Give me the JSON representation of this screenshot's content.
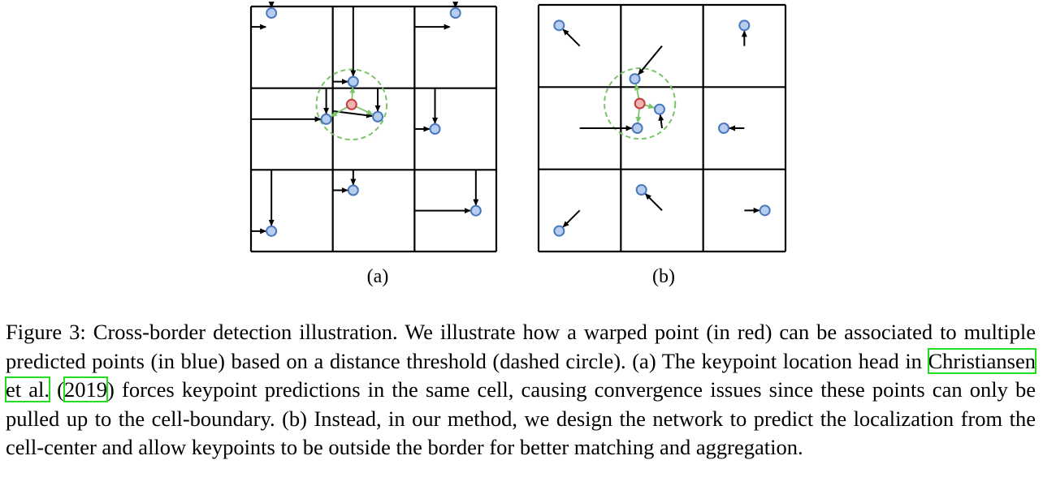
{
  "panels": [
    {
      "label": "(a)",
      "cells": 3,
      "dots": [
        {
          "id": "cell00",
          "kind": "blue",
          "p": [
            0.25,
            0.08
          ]
        },
        {
          "id": "cell01",
          "kind": "blue",
          "p": [
            1.25,
            0.92
          ]
        },
        {
          "id": "cell02",
          "kind": "blue",
          "p": [
            2.5,
            0.08
          ]
        },
        {
          "id": "cell10a",
          "kind": "blue",
          "p": [
            0.92,
            1.38
          ]
        },
        {
          "id": "cell11a",
          "kind": "blue",
          "p": [
            1.55,
            1.35
          ]
        },
        {
          "id": "cell12",
          "kind": "blue",
          "p": [
            2.25,
            1.5
          ]
        },
        {
          "id": "cell20",
          "kind": "blue",
          "p": [
            0.25,
            2.75
          ]
        },
        {
          "id": "cell21",
          "kind": "blue",
          "p": [
            1.25,
            2.25
          ]
        },
        {
          "id": "cell22",
          "kind": "blue",
          "p": [
            2.75,
            2.5
          ]
        },
        {
          "id": "warped",
          "kind": "red",
          "p": [
            1.23,
            1.2
          ]
        }
      ],
      "arrows": [
        {
          "from": [
            0.0,
            0.25
          ],
          "to": [
            0.25,
            0.25
          ]
        },
        {
          "from": [
            0.25,
            0.0
          ],
          "to": [
            0.25,
            0.08
          ]
        },
        {
          "from": [
            1.25,
            0.0
          ],
          "to": [
            1.25,
            0.92
          ]
        },
        {
          "from": [
            1.0,
            0.92
          ],
          "to": [
            1.25,
            0.92
          ]
        },
        {
          "from": [
            2.0,
            0.25
          ],
          "to": [
            2.5,
            0.25
          ]
        },
        {
          "from": [
            2.5,
            0.0
          ],
          "to": [
            2.5,
            0.08
          ]
        },
        {
          "from": [
            0.0,
            1.38
          ],
          "to": [
            0.92,
            1.38
          ]
        },
        {
          "from": [
            0.92,
            1.0
          ],
          "to": [
            0.92,
            1.38
          ]
        },
        {
          "from": [
            1.0,
            1.28
          ],
          "to": [
            1.55,
            1.35
          ]
        },
        {
          "from": [
            1.55,
            1.0
          ],
          "to": [
            1.55,
            1.35
          ]
        },
        {
          "from": [
            2.25,
            1.0
          ],
          "to": [
            2.25,
            1.5
          ]
        },
        {
          "from": [
            2.0,
            1.5
          ],
          "to": [
            2.25,
            1.5
          ]
        },
        {
          "from": [
            0.25,
            2.0
          ],
          "to": [
            0.25,
            2.75
          ]
        },
        {
          "from": [
            0.0,
            2.75
          ],
          "to": [
            0.25,
            2.75
          ]
        },
        {
          "from": [
            1.25,
            2.0
          ],
          "to": [
            1.25,
            2.25
          ]
        },
        {
          "from": [
            1.0,
            2.25
          ],
          "to": [
            1.25,
            2.25
          ]
        },
        {
          "from": [
            2.0,
            2.5
          ],
          "to": [
            2.75,
            2.5
          ]
        },
        {
          "from": [
            2.75,
            2.0
          ],
          "to": [
            2.75,
            2.5
          ]
        }
      ],
      "green_arrows": [
        {
          "from": [
            1.23,
            1.2
          ],
          "to": [
            1.25,
            0.92
          ]
        },
        {
          "from": [
            1.23,
            1.2
          ],
          "to": [
            0.92,
            1.38
          ]
        },
        {
          "from": [
            1.23,
            1.2
          ],
          "to": [
            1.55,
            1.35
          ]
        }
      ],
      "circle": {
        "c": [
          1.23,
          1.2
        ],
        "r": 0.43
      }
    },
    {
      "label": "(b)",
      "cells": 3,
      "dots": [
        {
          "id": "b00",
          "kind": "blue",
          "p": [
            0.25,
            0.25
          ]
        },
        {
          "id": "b01",
          "kind": "blue",
          "p": [
            1.17,
            0.9
          ]
        },
        {
          "id": "b02",
          "kind": "blue",
          "p": [
            2.5,
            0.25
          ]
        },
        {
          "id": "b10",
          "kind": "blue",
          "p": [
            1.2,
            1.5
          ]
        },
        {
          "id": "b11",
          "kind": "blue",
          "p": [
            1.47,
            1.27
          ]
        },
        {
          "id": "b12",
          "kind": "blue",
          "p": [
            2.25,
            1.5
          ]
        },
        {
          "id": "b20",
          "kind": "blue",
          "p": [
            0.25,
            2.75
          ]
        },
        {
          "id": "b21",
          "kind": "blue",
          "p": [
            1.25,
            2.25
          ]
        },
        {
          "id": "b22",
          "kind": "blue",
          "p": [
            2.75,
            2.5
          ]
        },
        {
          "id": "warpedb",
          "kind": "red",
          "p": [
            1.23,
            1.2
          ]
        }
      ],
      "arrows": [
        {
          "from": [
            0.5,
            0.5
          ],
          "to": [
            0.25,
            0.25
          ]
        },
        {
          "from": [
            1.5,
            0.5
          ],
          "to": [
            1.17,
            0.9
          ]
        },
        {
          "from": [
            2.5,
            0.5
          ],
          "to": [
            2.5,
            0.25
          ]
        },
        {
          "from": [
            0.5,
            1.5
          ],
          "to": [
            1.2,
            1.5
          ]
        },
        {
          "from": [
            1.5,
            1.5
          ],
          "to": [
            1.47,
            1.27
          ]
        },
        {
          "from": [
            2.5,
            1.5
          ],
          "to": [
            2.25,
            1.5
          ]
        },
        {
          "from": [
            0.5,
            2.5
          ],
          "to": [
            0.25,
            2.75
          ]
        },
        {
          "from": [
            1.5,
            2.5
          ],
          "to": [
            1.25,
            2.25
          ]
        },
        {
          "from": [
            2.5,
            2.5
          ],
          "to": [
            2.75,
            2.5
          ]
        }
      ],
      "green_arrows": [
        {
          "from": [
            1.23,
            1.2
          ],
          "to": [
            1.17,
            0.9
          ]
        },
        {
          "from": [
            1.23,
            1.2
          ],
          "to": [
            1.2,
            1.5
          ]
        },
        {
          "from": [
            1.23,
            1.2
          ],
          "to": [
            1.47,
            1.27
          ]
        }
      ],
      "circle": {
        "c": [
          1.23,
          1.2
        ],
        "r": 0.43
      }
    }
  ],
  "caption": {
    "prefix": "Figure 3:  Cross-border detection illustration.  We illustrate how a warped point (in red) can be associated to multiple predicted points (in blue) based on a distance threshold (dashed circle). (a) The keypoint location head in ",
    "ref_author": "Christiansen et al.",
    "ref_open": " (",
    "ref_year": "2019",
    "suffix": ") forces keypoint predictions in the same cell, causing convergence issues since these points can only be pulled up to the cell-boundary. (b) Instead, in our method, we design the network to predict the localization from the cell-center and allow keypoints to be outside the border for better matching and aggregation."
  },
  "colors": {
    "blue_fill": "#b7cdee",
    "blue_stroke": "#4a78c0",
    "red_fill": "#f2b2b2",
    "red_stroke": "#c43c3c",
    "green": "#7cc46a",
    "ref_box": "#22dd22"
  }
}
